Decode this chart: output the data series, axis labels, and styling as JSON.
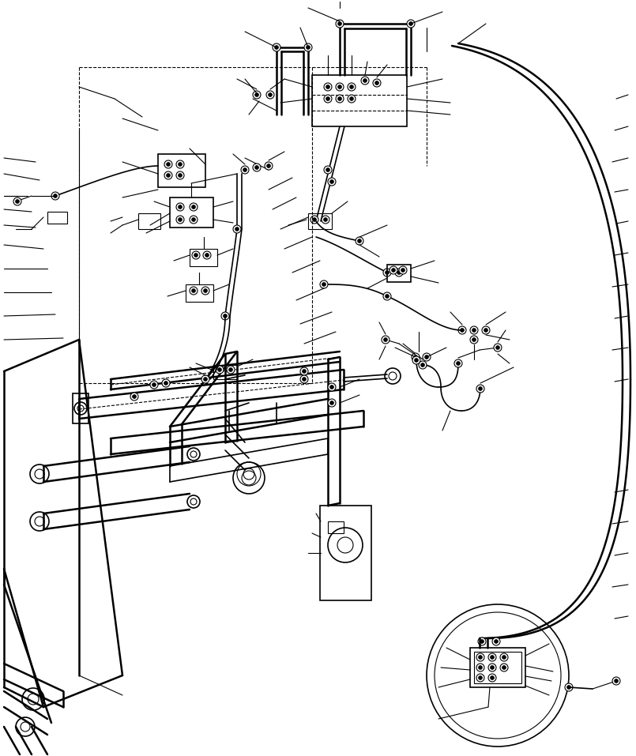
{
  "bg_color": "#ffffff",
  "line_color": "#000000",
  "lw_thin": 0.8,
  "lw_med": 1.2,
  "lw_thick": 1.8,
  "lw_vthick": 2.5,
  "fig_width": 8.05,
  "fig_height": 9.57
}
